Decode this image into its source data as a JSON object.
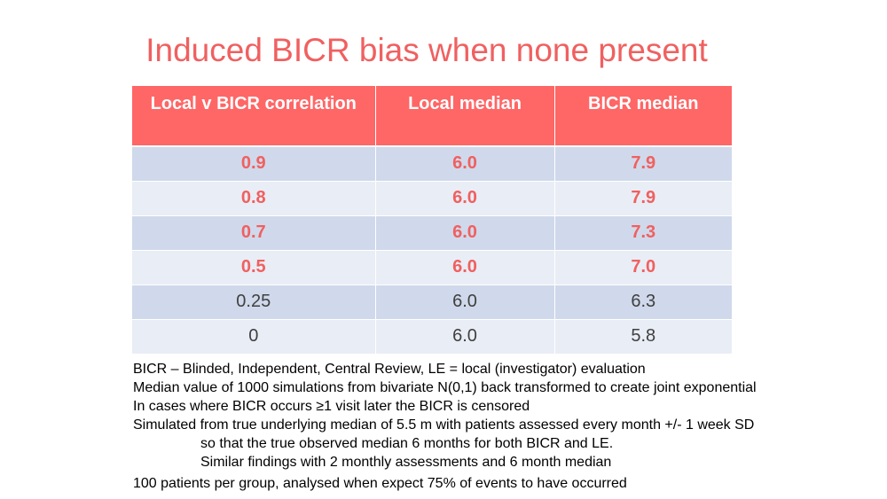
{
  "slide": {
    "title": "Induced BICR bias when none present"
  },
  "table": {
    "headers": [
      "Local v BICR correlation",
      "Local median",
      "BICR median"
    ],
    "rows": [
      {
        "correlation": "0.9",
        "local": "6.0",
        "bicr": "7.9",
        "highlight": true
      },
      {
        "correlation": "0.8",
        "local": "6.0",
        "bicr": "7.9",
        "highlight": true
      },
      {
        "correlation": "0.7",
        "local": "6.0",
        "bicr": "7.3",
        "highlight": true
      },
      {
        "correlation": "0.5",
        "local": "6.0",
        "bicr": "7.0",
        "highlight": true
      },
      {
        "correlation": "0.25",
        "local": "6.0",
        "bicr": "6.3",
        "highlight": false
      },
      {
        "correlation": "0",
        "local": "6.0",
        "bicr": "5.8",
        "highlight": false
      }
    ]
  },
  "notes": [
    "BICR – Blinded, Independent, Central Review, LE = local (investigator) evaluation",
    "Median value of 1000 simulations from bivariate N(0,1) back transformed to create joint exponential",
    "In cases where BICR occurs  ≥1 visit later the BICR is censored",
    "Simulated from true underlying median of 5.5 m with patients assessed every month +/- 1 week SD",
    "so that the true observed median 6 months for both BICR and LE.",
    "Similar findings with 2 monthly assessments and 6 month median",
    "100 patients per group, analysed when expect 75% of events to have occurred"
  ],
  "colors": {
    "accent": "#f06060",
    "header_bg": "#ff6666",
    "row_odd": "#d0d9eb",
    "row_even": "#e9edf5"
  }
}
